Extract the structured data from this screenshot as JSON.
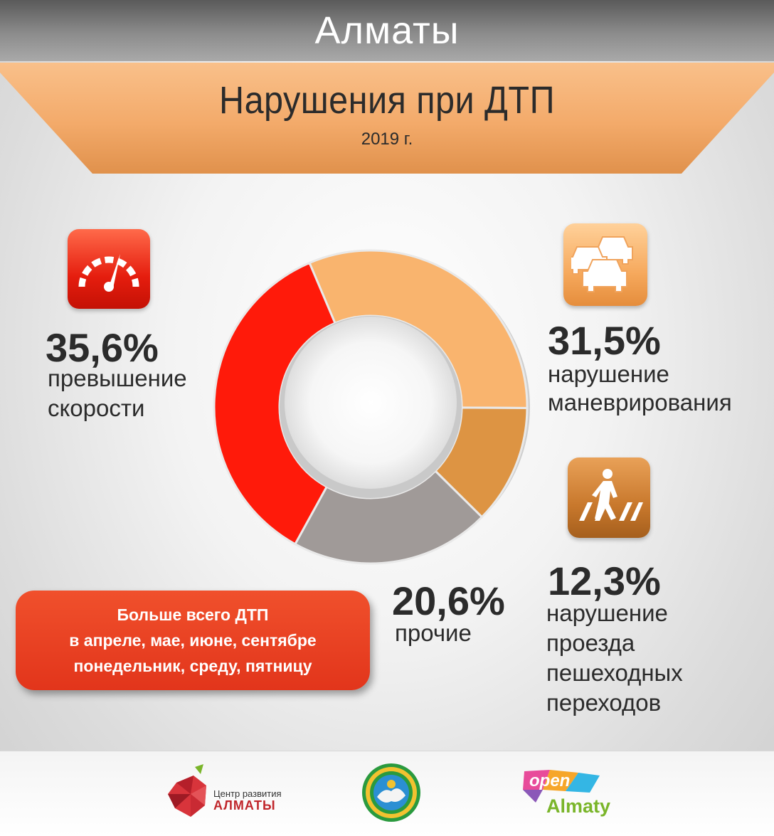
{
  "header": {
    "city": "Алматы"
  },
  "banner": {
    "title": "Нарушения при ДТП",
    "subtitle": "2019 г."
  },
  "categories": {
    "speeding": {
      "percent": "35,6%",
      "line1": "превышение",
      "line2": "скорости",
      "icon": "speedometer-icon",
      "color": "#ff1a0a"
    },
    "maneuvering": {
      "percent": "31,5%",
      "line1": "нарушение",
      "line2": "маневрирования",
      "icon": "cars-icon",
      "color": "#f9b46e"
    },
    "crossing": {
      "percent": "12,3%",
      "line1": "нарушение",
      "line2": "проезда",
      "line3": "пешеходных",
      "line4": "переходов",
      "icon": "pedestrian-crossing-icon",
      "color": "#dd9443"
    },
    "other": {
      "percent": "20,6%",
      "line1": "прочие",
      "color": "#a09a98"
    }
  },
  "chart_data": {
    "type": "pie",
    "donut": true,
    "segments": [
      {
        "label": "превышение скорости",
        "value": 35.6,
        "color": "#ff1a0a"
      },
      {
        "label": "нарушение маневрирования",
        "value": 31.5,
        "color": "#f9b46e"
      },
      {
        "label": "нарушение проезда пешеходных переходов",
        "value": 12.3,
        "color": "#dd9443"
      },
      {
        "label": "прочие",
        "value": 20.6,
        "color": "#a09a98"
      }
    ]
  },
  "note": {
    "line1": "Больше всего ДТП",
    "line2": "в апреле, мае, июне, сентябре",
    "line3": "понедельник, среду, пятницу"
  },
  "footer": {
    "org_line1": "Центр развития",
    "org_line2": "АЛМАТЫ",
    "open_word": "open",
    "almaty_word": "Almaty"
  }
}
